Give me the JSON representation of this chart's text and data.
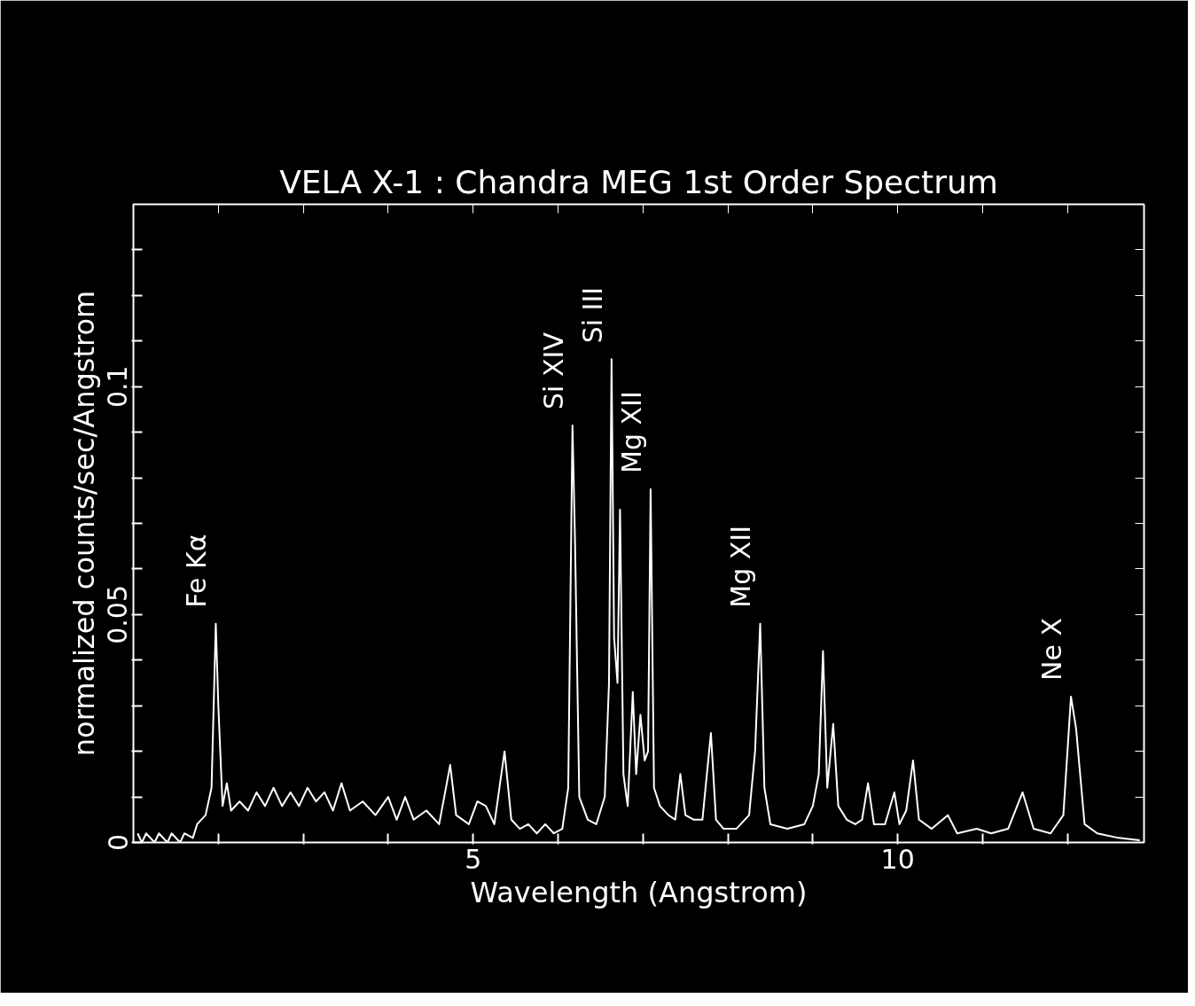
{
  "chart_data": {
    "type": "line",
    "title": "VELA X-1 : Chandra MEG 1st Order Spectrum",
    "xlabel": "Wavelength (Angstrom)",
    "ylabel": "normalized counts/sec/Angstrom",
    "xlim": [
      1.0,
      12.9
    ],
    "ylim": [
      0,
      0.14
    ],
    "xticks": [
      {
        "value": 2,
        "label": null
      },
      {
        "value": 3,
        "label": null
      },
      {
        "value": 4,
        "label": null
      },
      5,
      {
        "value": 6,
        "label": null
      },
      {
        "value": 7,
        "label": null
      },
      {
        "value": 8,
        "label": null
      },
      {
        "value": 9,
        "label": null
      },
      10,
      {
        "value": 11,
        "label": null
      },
      {
        "value": 12,
        "label": null
      }
    ],
    "yticks": [
      0,
      {
        "value": 0.01,
        "label": null
      },
      {
        "value": 0.02,
        "label": null
      },
      {
        "value": 0.03,
        "label": null
      },
      {
        "value": 0.04,
        "label": null
      },
      0.05,
      {
        "value": 0.06,
        "label": null
      },
      {
        "value": 0.07,
        "label": null
      },
      {
        "value": 0.08,
        "label": null
      },
      {
        "value": 0.09,
        "label": null
      },
      0.1,
      {
        "value": 0.11,
        "label": null
      },
      {
        "value": 0.12,
        "label": null
      },
      {
        "value": 0.13,
        "label": null
      }
    ],
    "grid": false,
    "annotations": [
      {
        "text": "Fe Kα",
        "x": 1.97,
        "y": 0.048
      },
      {
        "text": "Si XIV",
        "x": 6.17,
        "y": 0.0915
      },
      {
        "text": "Si III",
        "x": 6.63,
        "y": 0.106
      },
      {
        "text": "Mg XII",
        "x": 7.09,
        "y": 0.0775
      },
      {
        "text": "Mg XII",
        "x": 8.38,
        "y": 0.048
      },
      {
        "text": "Ne X",
        "x": 12.04,
        "y": 0.032
      }
    ],
    "series": [
      {
        "color": "#ffffff",
        "x": [
          1.05,
          1.1,
          1.15,
          1.25,
          1.3,
          1.4,
          1.45,
          1.55,
          1.6,
          1.7,
          1.75,
          1.85,
          1.92,
          1.97,
          2.0,
          2.05,
          2.1,
          2.15,
          2.25,
          2.35,
          2.45,
          2.55,
          2.65,
          2.75,
          2.85,
          2.95,
          3.05,
          3.15,
          3.25,
          3.35,
          3.45,
          3.55,
          3.7,
          3.85,
          4.0,
          4.1,
          4.2,
          4.3,
          4.45,
          4.6,
          4.73,
          4.8,
          4.95,
          5.05,
          5.15,
          5.25,
          5.37,
          5.45,
          5.55,
          5.65,
          5.75,
          5.85,
          5.95,
          6.05,
          6.12,
          6.17,
          6.2,
          6.25,
          6.35,
          6.45,
          6.55,
          6.6,
          6.63,
          6.66,
          6.7,
          6.73,
          6.77,
          6.82,
          6.88,
          6.92,
          6.97,
          7.02,
          7.06,
          7.09,
          7.13,
          7.2,
          7.3,
          7.38,
          7.44,
          7.5,
          7.6,
          7.7,
          7.8,
          7.86,
          7.95,
          8.1,
          8.25,
          8.32,
          8.38,
          8.43,
          8.5,
          8.7,
          8.9,
          9.0,
          9.07,
          9.12,
          9.17,
          9.24,
          9.3,
          9.4,
          9.5,
          9.58,
          9.65,
          9.72,
          9.85,
          9.96,
          10.02,
          10.1,
          10.18,
          10.25,
          10.4,
          10.59,
          10.7,
          10.93,
          11.1,
          11.3,
          11.47,
          11.6,
          11.8,
          11.95,
          12.04,
          12.1,
          12.2,
          12.35,
          12.6,
          12.85
        ],
        "values": [
          0.002,
          0.0,
          0.002,
          0.0,
          0.002,
          0.0,
          0.002,
          0.0,
          0.002,
          0.001,
          0.004,
          0.006,
          0.012,
          0.048,
          0.03,
          0.008,
          0.013,
          0.007,
          0.009,
          0.007,
          0.011,
          0.008,
          0.012,
          0.008,
          0.011,
          0.008,
          0.012,
          0.009,
          0.011,
          0.007,
          0.013,
          0.007,
          0.009,
          0.006,
          0.01,
          0.005,
          0.01,
          0.005,
          0.007,
          0.004,
          0.017,
          0.006,
          0.004,
          0.009,
          0.008,
          0.004,
          0.02,
          0.005,
          0.003,
          0.004,
          0.002,
          0.004,
          0.002,
          0.003,
          0.012,
          0.0915,
          0.066,
          0.01,
          0.005,
          0.004,
          0.01,
          0.035,
          0.106,
          0.045,
          0.035,
          0.073,
          0.015,
          0.008,
          0.033,
          0.015,
          0.028,
          0.018,
          0.02,
          0.0775,
          0.012,
          0.008,
          0.006,
          0.005,
          0.015,
          0.006,
          0.005,
          0.005,
          0.024,
          0.005,
          0.003,
          0.003,
          0.006,
          0.02,
          0.048,
          0.012,
          0.004,
          0.003,
          0.004,
          0.008,
          0.015,
          0.042,
          0.012,
          0.026,
          0.008,
          0.005,
          0.004,
          0.005,
          0.013,
          0.004,
          0.004,
          0.011,
          0.004,
          0.007,
          0.018,
          0.005,
          0.003,
          0.006,
          0.002,
          0.003,
          0.002,
          0.003,
          0.011,
          0.003,
          0.002,
          0.006,
          0.032,
          0.025,
          0.004,
          0.002,
          0.001,
          0.0005
        ]
      }
    ]
  }
}
